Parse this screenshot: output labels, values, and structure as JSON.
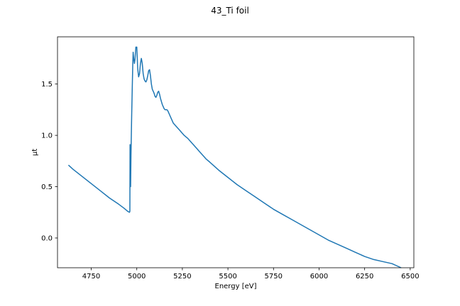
{
  "chart_data": {
    "type": "line",
    "title": "43_Ti foil",
    "xlabel": "Energy [eV]",
    "ylabel": "μt",
    "xlim": [
      4565,
      6520
    ],
    "ylim": [
      -0.29,
      1.96
    ],
    "xticks": [
      4750,
      5000,
      5250,
      5500,
      5750,
      6000,
      6250,
      6500
    ],
    "yticks": [
      0.0,
      0.5,
      1.0,
      1.5
    ],
    "ytick_labels": [
      "0.0",
      "0.5",
      "1.0",
      "1.5"
    ],
    "grid": false,
    "color": "#1f77b4",
    "series": [
      {
        "x": [
          4625,
          4650,
          4700,
          4750,
          4800,
          4850,
          4900,
          4930,
          4950,
          4960,
          4962,
          4963,
          4964,
          4965,
          4966,
          4968,
          4970,
          4972,
          4975,
          4978,
          4980,
          4983,
          4987,
          4990,
          4995,
          5000,
          5005,
          5010,
          5015,
          5020,
          5025,
          5030,
          5035,
          5040,
          5045,
          5050,
          5055,
          5060,
          5065,
          5070,
          5075,
          5080,
          5085,
          5090,
          5095,
          5100,
          5105,
          5110,
          5115,
          5120,
          5125,
          5130,
          5135,
          5140,
          5145,
          5150,
          5155,
          5160,
          5165,
          5170,
          5175,
          5180,
          5185,
          5190,
          5195,
          5200,
          5210,
          5220,
          5230,
          5240,
          5250,
          5260,
          5270,
          5280,
          5290,
          5300,
          5310,
          5320,
          5330,
          5340,
          5350,
          5360,
          5370,
          5380,
          5400,
          5450,
          5500,
          5550,
          5600,
          5650,
          5700,
          5750,
          5800,
          5850,
          5900,
          5950,
          6000,
          6050,
          6100,
          6150,
          6200,
          6250,
          6300,
          6350,
          6400,
          6450
        ],
        "y": [
          0.71,
          0.67,
          0.6,
          0.53,
          0.46,
          0.39,
          0.33,
          0.29,
          0.26,
          0.25,
          0.26,
          0.91,
          0.68,
          0.8,
          0.5,
          0.8,
          1.0,
          1.2,
          1.45,
          1.7,
          1.81,
          1.75,
          1.7,
          1.74,
          1.86,
          1.86,
          1.65,
          1.57,
          1.6,
          1.7,
          1.75,
          1.7,
          1.6,
          1.55,
          1.53,
          1.52,
          1.54,
          1.58,
          1.63,
          1.64,
          1.58,
          1.5,
          1.45,
          1.43,
          1.41,
          1.38,
          1.37,
          1.39,
          1.42,
          1.43,
          1.4,
          1.36,
          1.33,
          1.3,
          1.28,
          1.26,
          1.25,
          1.25,
          1.25,
          1.24,
          1.22,
          1.2,
          1.18,
          1.16,
          1.14,
          1.12,
          1.1,
          1.08,
          1.06,
          1.04,
          1.02,
          1.0,
          0.985,
          0.97,
          0.95,
          0.93,
          0.91,
          0.89,
          0.87,
          0.85,
          0.83,
          0.81,
          0.79,
          0.77,
          0.74,
          0.66,
          0.59,
          0.52,
          0.46,
          0.4,
          0.34,
          0.28,
          0.23,
          0.18,
          0.13,
          0.08,
          0.03,
          -0.02,
          -0.06,
          -0.1,
          -0.14,
          -0.18,
          -0.21,
          -0.23,
          -0.25,
          -0.29
        ]
      }
    ]
  }
}
